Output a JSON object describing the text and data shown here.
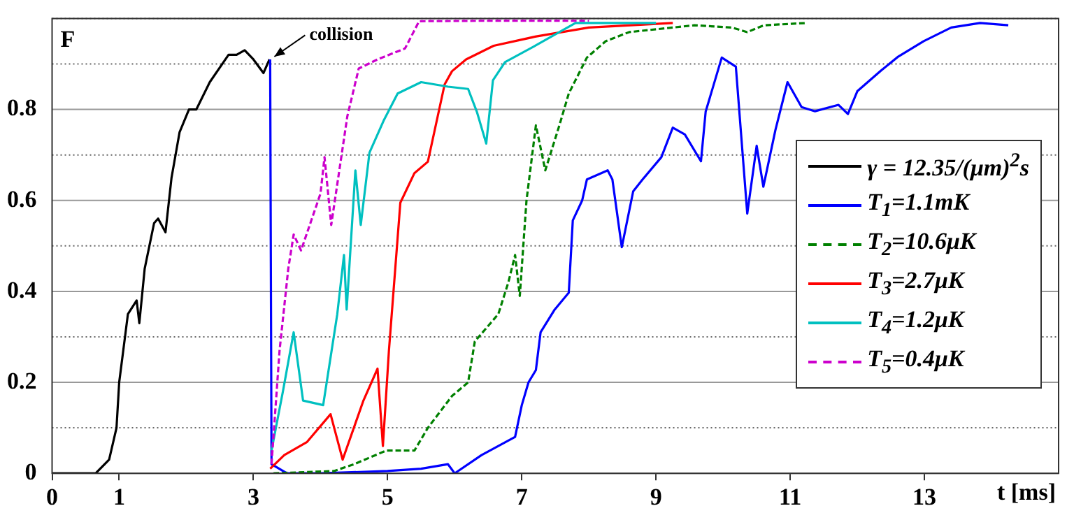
{
  "chart_data": {
    "type": "line",
    "xlabel": "t [ms]",
    "ylabel": "F",
    "xlim": [
      0,
      15
    ],
    "ylim": [
      0,
      1
    ],
    "xticks": [
      0,
      1,
      3,
      5,
      7,
      9,
      11,
      13
    ],
    "yticks": [
      0,
      {
        "value": 0.1,
        "label": null
      },
      0.2,
      {
        "value": 0.3,
        "label": null
      },
      0.4,
      {
        "value": 0.5,
        "label": null
      },
      0.6,
      {
        "value": 0.7,
        "label": null
      },
      0.8,
      {
        "value": 0.9,
        "label": null
      },
      {
        "value": 1,
        "label": null
      }
    ],
    "grid": "y",
    "legend": "right",
    "marker": "none",
    "annotations": [
      {
        "text": "collision",
        "x": 3.25,
        "y": 0.91
      }
    ],
    "series": [
      {
        "name": "γ = 12.35/(μm)$^{2}$s",
        "color": "#000000",
        "line_style": "solid",
        "x": [
          0,
          0.65,
          0.85,
          0.96,
          1.0,
          1.13,
          1.26,
          1.3,
          1.38,
          1.52,
          1.58,
          1.69,
          1.78,
          1.9,
          2.04,
          2.15,
          2.35,
          2.63,
          2.75,
          2.87,
          3.0,
          3.15,
          3.24
        ],
        "values": [
          0,
          0,
          0.03,
          0.1,
          0.2,
          0.35,
          0.38,
          0.33,
          0.45,
          0.55,
          0.56,
          0.53,
          0.65,
          0.75,
          0.8,
          0.8,
          0.86,
          0.92,
          0.92,
          0.93,
          0.91,
          0.88,
          0.91
        ]
      },
      {
        "name": "T$_{1}$=1.1mK",
        "color": "#0000ff",
        "line_style": "solid",
        "x": [
          3.25,
          3.27,
          3.5,
          4.0,
          5.0,
          5.5,
          5.9,
          6.0,
          6.4,
          6.9,
          7.0,
          7.1,
          7.21,
          7.28,
          7.49,
          7.7,
          7.76,
          7.9,
          7.97,
          8.28,
          8.35,
          8.49,
          8.66,
          8.8,
          9.08,
          9.25,
          9.43,
          9.67,
          9.74,
          9.98,
          10.19,
          10.36,
          10.5,
          10.6,
          10.78,
          10.96,
          11.17,
          11.37,
          11.72,
          11.86,
          12.0,
          12.35,
          12.6,
          12.99,
          13.4,
          13.83,
          14.25
        ],
        "values": [
          0.91,
          0.02,
          0,
          0,
          0.005,
          0.01,
          0.02,
          0,
          0.04,
          0.08,
          0.15,
          0.2,
          0.227,
          0.31,
          0.36,
          0.397,
          0.556,
          0.6,
          0.646,
          0.666,
          0.646,
          0.497,
          0.62,
          0.646,
          0.695,
          0.76,
          0.745,
          0.686,
          0.795,
          0.914,
          0.894,
          0.571,
          0.72,
          0.63,
          0.755,
          0.86,
          0.805,
          0.796,
          0.81,
          0.79,
          0.84,
          0.885,
          0.915,
          0.95,
          0.98,
          0.99,
          0.985
        ]
      },
      {
        "name": "T$_{2}$=10.6μK",
        "color": "#008000",
        "line_style": "dashed",
        "x": [
          3.3,
          4.2,
          4.5,
          4.98,
          5.4,
          5.6,
          5.96,
          6.2,
          6.3,
          6.65,
          6.8,
          6.9,
          6.97,
          7.07,
          7.21,
          7.35,
          7.56,
          7.7,
          7.97,
          8.25,
          8.6,
          9.57,
          10.13,
          10.36,
          10.61,
          11.24
        ],
        "values": [
          0,
          0.005,
          0.02,
          0.05,
          0.05,
          0.1,
          0.17,
          0.2,
          0.29,
          0.35,
          0.42,
          0.48,
          0.39,
          0.6,
          0.765,
          0.666,
          0.765,
          0.835,
          0.914,
          0.95,
          0.97,
          0.985,
          0.98,
          0.97,
          0.985,
          0.99
        ]
      },
      {
        "name": "T$_{3}$=2.7μK",
        "color": "#ff0000",
        "line_style": "solid",
        "x": [
          3.25,
          3.46,
          3.8,
          4.15,
          4.33,
          4.64,
          4.85,
          4.93,
          5.02,
          5.19,
          5.4,
          5.6,
          5.85,
          5.96,
          6.17,
          6.58,
          7.2,
          8.0,
          9.25
        ],
        "values": [
          0.01,
          0.04,
          0.069,
          0.13,
          0.03,
          0.16,
          0.23,
          0.06,
          0.27,
          0.595,
          0.66,
          0.685,
          0.855,
          0.884,
          0.91,
          0.94,
          0.96,
          0.98,
          0.99
        ]
      },
      {
        "name": "T$_{4}$=1.2μK",
        "color": "#00c0c0",
        "line_style": "solid",
        "x": [
          3.27,
          3.44,
          3.6,
          3.74,
          4.04,
          4.25,
          4.35,
          4.39,
          4.52,
          4.6,
          4.73,
          4.94,
          5.15,
          5.5,
          5.9,
          6.2,
          6.33,
          6.47,
          6.57,
          6.75,
          7.2,
          7.8,
          9.0
        ],
        "values": [
          0.05,
          0.18,
          0.31,
          0.16,
          0.15,
          0.35,
          0.48,
          0.36,
          0.666,
          0.546,
          0.705,
          0.775,
          0.835,
          0.86,
          0.85,
          0.845,
          0.795,
          0.725,
          0.864,
          0.904,
          0.94,
          0.99,
          0.99
        ]
      },
      {
        "name": "T$_{5}$=0.4μK",
        "color": "#cc00cc",
        "line_style": "dashed",
        "x": [
          3.27,
          3.39,
          3.52,
          3.6,
          3.71,
          4.0,
          4.06,
          4.16,
          4.4,
          4.57,
          4.85,
          5.26,
          5.47,
          6.5,
          7.2,
          8.0
        ],
        "values": [
          0.02,
          0.27,
          0.45,
          0.525,
          0.49,
          0.615,
          0.695,
          0.546,
          0.785,
          0.89,
          0.91,
          0.934,
          0.994,
          0.995,
          0.995,
          0.995
        ]
      }
    ]
  }
}
